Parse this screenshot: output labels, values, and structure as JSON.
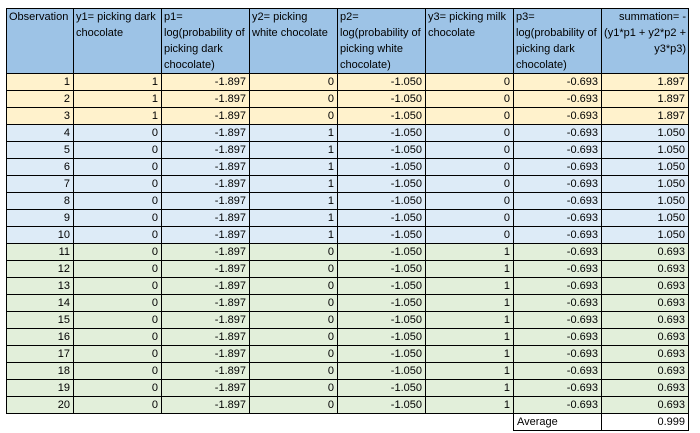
{
  "headers": [
    "Observation",
    "y1= picking dark chocolate",
    "p1= log(probability of picking dark chocolate)",
    "y2= picking white chocolate",
    "p2= log(probability of picking white chocolate)",
    "y3= picking milk chocolate",
    "p3= log(probability of picking dark chocolate)",
    "summation= -(y1*p1 + y2*p2 + y3*p3)"
  ],
  "rows": [
    {
      "obs": "1",
      "y1": "1",
      "p1": "-1.897",
      "y2": "0",
      "p2": "-1.050",
      "y3": "0",
      "p3": "-0.693",
      "sum": "1.897",
      "group": "yellow"
    },
    {
      "obs": "2",
      "y1": "1",
      "p1": "-1.897",
      "y2": "0",
      "p2": "-1.050",
      "y3": "0",
      "p3": "-0.693",
      "sum": "1.897",
      "group": "yellow"
    },
    {
      "obs": "3",
      "y1": "1",
      "p1": "-1.897",
      "y2": "0",
      "p2": "-1.050",
      "y3": "0",
      "p3": "-0.693",
      "sum": "1.897",
      "group": "yellow"
    },
    {
      "obs": "4",
      "y1": "0",
      "p1": "-1.897",
      "y2": "1",
      "p2": "-1.050",
      "y3": "0",
      "p3": "-0.693",
      "sum": "1.050",
      "group": "blue"
    },
    {
      "obs": "5",
      "y1": "0",
      "p1": "-1.897",
      "y2": "1",
      "p2": "-1.050",
      "y3": "0",
      "p3": "-0.693",
      "sum": "1.050",
      "group": "blue"
    },
    {
      "obs": "6",
      "y1": "0",
      "p1": "-1.897",
      "y2": "1",
      "p2": "-1.050",
      "y3": "0",
      "p3": "-0.693",
      "sum": "1.050",
      "group": "blue"
    },
    {
      "obs": "7",
      "y1": "0",
      "p1": "-1.897",
      "y2": "1",
      "p2": "-1.050",
      "y3": "0",
      "p3": "-0.693",
      "sum": "1.050",
      "group": "blue"
    },
    {
      "obs": "8",
      "y1": "0",
      "p1": "-1.897",
      "y2": "1",
      "p2": "-1.050",
      "y3": "0",
      "p3": "-0.693",
      "sum": "1.050",
      "group": "blue"
    },
    {
      "obs": "9",
      "y1": "0",
      "p1": "-1.897",
      "y2": "1",
      "p2": "-1.050",
      "y3": "0",
      "p3": "-0.693",
      "sum": "1.050",
      "group": "blue"
    },
    {
      "obs": "10",
      "y1": "0",
      "p1": "-1.897",
      "y2": "1",
      "p2": "-1.050",
      "y3": "0",
      "p3": "-0.693",
      "sum": "1.050",
      "group": "blue"
    },
    {
      "obs": "11",
      "y1": "0",
      "p1": "-1.897",
      "y2": "0",
      "p2": "-1.050",
      "y3": "1",
      "p3": "-0.693",
      "sum": "0.693",
      "group": "green"
    },
    {
      "obs": "12",
      "y1": "0",
      "p1": "-1.897",
      "y2": "0",
      "p2": "-1.050",
      "y3": "1",
      "p3": "-0.693",
      "sum": "0.693",
      "group": "green"
    },
    {
      "obs": "13",
      "y1": "0",
      "p1": "-1.897",
      "y2": "0",
      "p2": "-1.050",
      "y3": "1",
      "p3": "-0.693",
      "sum": "0.693",
      "group": "green"
    },
    {
      "obs": "14",
      "y1": "0",
      "p1": "-1.897",
      "y2": "0",
      "p2": "-1.050",
      "y3": "1",
      "p3": "-0.693",
      "sum": "0.693",
      "group": "green"
    },
    {
      "obs": "15",
      "y1": "0",
      "p1": "-1.897",
      "y2": "0",
      "p2": "-1.050",
      "y3": "1",
      "p3": "-0.693",
      "sum": "0.693",
      "group": "green"
    },
    {
      "obs": "16",
      "y1": "0",
      "p1": "-1.897",
      "y2": "0",
      "p2": "-1.050",
      "y3": "1",
      "p3": "-0.693",
      "sum": "0.693",
      "group": "green"
    },
    {
      "obs": "17",
      "y1": "0",
      "p1": "-1.897",
      "y2": "0",
      "p2": "-1.050",
      "y3": "1",
      "p3": "-0.693",
      "sum": "0.693",
      "group": "green"
    },
    {
      "obs": "18",
      "y1": "0",
      "p1": "-1.897",
      "y2": "0",
      "p2": "-1.050",
      "y3": "1",
      "p3": "-0.693",
      "sum": "0.693",
      "group": "green"
    },
    {
      "obs": "19",
      "y1": "0",
      "p1": "-1.897",
      "y2": "0",
      "p2": "-1.050",
      "y3": "1",
      "p3": "-0.693",
      "sum": "0.693",
      "group": "green"
    },
    {
      "obs": "20",
      "y1": "0",
      "p1": "-1.897",
      "y2": "0",
      "p2": "-1.050",
      "y3": "1",
      "p3": "-0.693",
      "sum": "0.693",
      "group": "green"
    }
  ],
  "footer": {
    "label": "Average",
    "value": "0.999"
  },
  "colors": {
    "header": "#9dc3e6",
    "yellow": "#fff2cc",
    "blue": "#ddebf7",
    "green": "#e2efda"
  }
}
